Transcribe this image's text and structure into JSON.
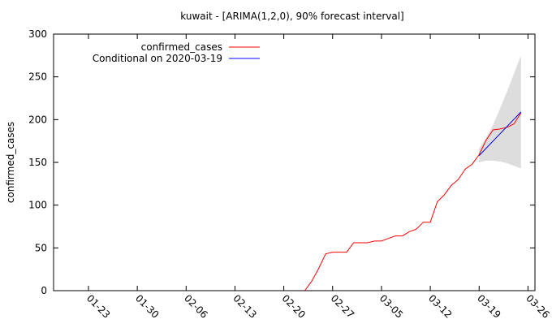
{
  "chart_data": {
    "type": "line",
    "title": "kuwait -  [ARIMA(1,2,0), 90% forecast interval]",
    "xlabel": "",
    "ylabel": "confirmed_cases",
    "ylim": [
      0,
      300
    ],
    "xlim": [
      "2020-01-18",
      "2020-03-27"
    ],
    "grid": false,
    "legend_position": "top-left",
    "y_ticks": [
      0,
      50,
      100,
      150,
      200,
      250,
      300
    ],
    "x_ticks": [
      {
        "date": "2020-01-23",
        "label": "01-23"
      },
      {
        "date": "2020-01-30",
        "label": "01-30"
      },
      {
        "date": "2020-02-06",
        "label": "02-06"
      },
      {
        "date": "2020-02-13",
        "label": "02-13"
      },
      {
        "date": "2020-02-20",
        "label": "02-20"
      },
      {
        "date": "2020-02-27",
        "label": "02-27"
      },
      {
        "date": "2020-03-05",
        "label": "03-05"
      },
      {
        "date": "2020-03-12",
        "label": "03-12"
      },
      {
        "date": "2020-03-19",
        "label": "03-19"
      },
      {
        "date": "2020-03-26",
        "label": "03-26"
      }
    ],
    "series": [
      {
        "name": "confirmed_cases",
        "color": "#ff0000",
        "points": [
          {
            "x": "2020-02-23",
            "y": 0
          },
          {
            "x": "2020-02-24",
            "y": 11
          },
          {
            "x": "2020-02-25",
            "y": 26
          },
          {
            "x": "2020-02-26",
            "y": 43
          },
          {
            "x": "2020-02-27",
            "y": 45
          },
          {
            "x": "2020-02-28",
            "y": 45
          },
          {
            "x": "2020-02-29",
            "y": 45
          },
          {
            "x": "2020-03-01",
            "y": 56
          },
          {
            "x": "2020-03-02",
            "y": 56
          },
          {
            "x": "2020-03-03",
            "y": 56
          },
          {
            "x": "2020-03-04",
            "y": 58
          },
          {
            "x": "2020-03-05",
            "y": 58
          },
          {
            "x": "2020-03-06",
            "y": 61
          },
          {
            "x": "2020-03-07",
            "y": 64
          },
          {
            "x": "2020-03-08",
            "y": 64
          },
          {
            "x": "2020-03-09",
            "y": 69
          },
          {
            "x": "2020-03-10",
            "y": 72
          },
          {
            "x": "2020-03-11",
            "y": 80
          },
          {
            "x": "2020-03-12",
            "y": 80
          },
          {
            "x": "2020-03-13",
            "y": 104
          },
          {
            "x": "2020-03-14",
            "y": 112
          },
          {
            "x": "2020-03-15",
            "y": 123
          },
          {
            "x": "2020-03-16",
            "y": 130
          },
          {
            "x": "2020-03-17",
            "y": 142
          },
          {
            "x": "2020-03-18",
            "y": 148
          },
          {
            "x": "2020-03-19",
            "y": 159
          },
          {
            "x": "2020-03-20",
            "y": 176
          },
          {
            "x": "2020-03-21",
            "y": 188
          },
          {
            "x": "2020-03-22",
            "y": 189
          },
          {
            "x": "2020-03-23",
            "y": 191
          },
          {
            "x": "2020-03-24",
            "y": 195
          },
          {
            "x": "2020-03-25",
            "y": 208
          }
        ]
      },
      {
        "name": "Conditional on 2020-03-19",
        "color": "#0000ff",
        "points": [
          {
            "x": "2020-03-19",
            "y": 158
          },
          {
            "x": "2020-03-25",
            "y": 209
          }
        ]
      }
    ],
    "forecast_interval": {
      "color": "#dddddd",
      "points": [
        {
          "x": "2020-03-19",
          "lower": 150,
          "upper": 166
        },
        {
          "x": "2020-03-20",
          "lower": 152,
          "upper": 178
        },
        {
          "x": "2020-03-21",
          "lower": 152,
          "upper": 194
        },
        {
          "x": "2020-03-22",
          "lower": 151,
          "upper": 213
        },
        {
          "x": "2020-03-23",
          "lower": 149,
          "upper": 233
        },
        {
          "x": "2020-03-24",
          "lower": 146,
          "upper": 254
        },
        {
          "x": "2020-03-25",
          "lower": 143,
          "upper": 275
        }
      ]
    }
  }
}
